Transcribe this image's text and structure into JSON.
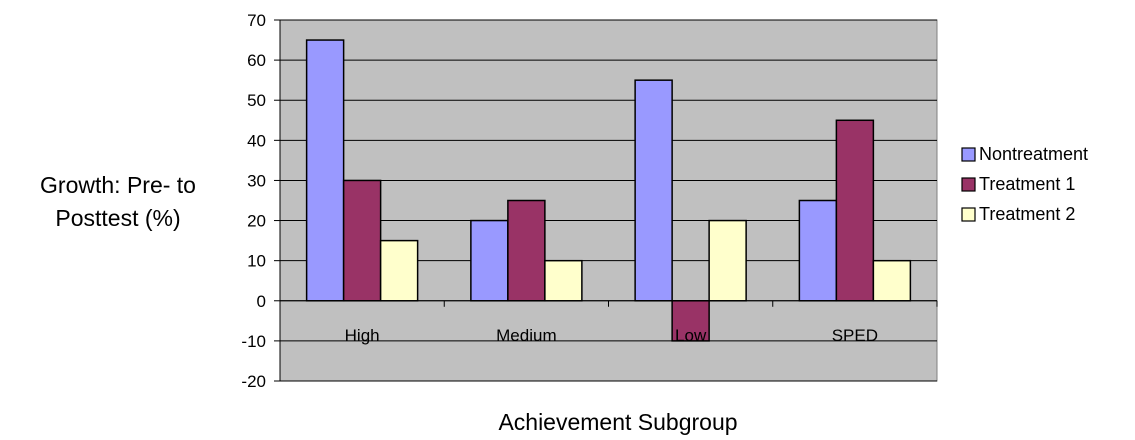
{
  "chart_data": {
    "type": "bar",
    "categories": [
      "High",
      "Medium",
      "Low",
      "SPED"
    ],
    "series": [
      {
        "name": "Nontreatment",
        "values": [
          65,
          20,
          55,
          25
        ],
        "color": "#9999ff"
      },
      {
        "name": "Treatment 1",
        "values": [
          30,
          25,
          -10,
          45
        ],
        "color": "#993366"
      },
      {
        "name": "Treatment 2",
        "values": [
          15,
          10,
          20,
          10
        ],
        "color": "#ffffcc"
      }
    ],
    "xlabel": "Achievement Subgroup",
    "ylabel_lines": [
      "Growth: Pre- to",
      "Posttest (%)"
    ],
    "ylim": [
      -20,
      70
    ],
    "yticks": [
      70,
      60,
      50,
      40,
      30,
      20,
      10,
      0,
      -10,
      -20
    ],
    "plot_background": "#c0c0c0",
    "grid": true,
    "legend_position": "right"
  }
}
